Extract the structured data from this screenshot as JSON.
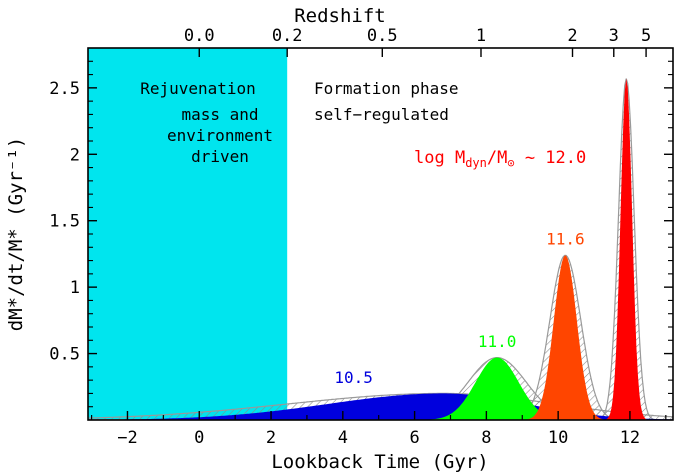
{
  "chart_data": {
    "type": "area",
    "title": "",
    "xlabel": "Lookback Time (Gyr)",
    "ylabel": "dM*/dt/M* (Gyr⁻¹)",
    "top_axis_label": "Redshift",
    "xlim": [
      -3.1,
      13.2
    ],
    "ylim": [
      0,
      2.8
    ],
    "x_ticks": [
      -2,
      0,
      2,
      4,
      6,
      8,
      10,
      12
    ],
    "x_tick_labels": [
      "−2",
      "0",
      "2",
      "4",
      "6",
      "8",
      "10",
      "12"
    ],
    "y_ticks": [
      0.5,
      1,
      1.5,
      2,
      2.5
    ],
    "y_tick_labels": [
      "0.5",
      "1",
      "1.5",
      "2",
      "2.5"
    ],
    "redshift_ticks": [
      {
        "label": "0.0",
        "lookback_gyr": 0.0
      },
      {
        "label": "0.2",
        "lookback_gyr": 2.45
      },
      {
        "label": "0.5",
        "lookback_gyr": 5.1
      },
      {
        "label": "1",
        "lookback_gyr": 7.85
      },
      {
        "label": "2",
        "lookback_gyr": 10.4
      },
      {
        "label": "3",
        "lookback_gyr": 11.55
      },
      {
        "label": "5",
        "lookback_gyr": 12.45
      }
    ],
    "rejuvenation_region": {
      "x_range": [
        -3.1,
        2.45
      ],
      "color": "#00e5ee"
    },
    "phase_labels": {
      "rejuvenation_title": "Rejuvenation",
      "rejuvenation_line1": "mass and",
      "rejuvenation_line2": "environment",
      "rejuvenation_line3": "driven",
      "formation_title": "Formation phase",
      "formation_line1": "self−regulated"
    },
    "mass_bin_prefix": "log M",
    "mass_bin_sub1": "dyn",
    "mass_bin_mid": "/M",
    "mass_bin_sub2": "⊙",
    "mass_bin_suffix": " ~ 12.0",
    "series": [
      {
        "name": "10.5",
        "peak_x": 6.8,
        "peak_y": 0.2,
        "sigma_left": 3.2,
        "sigma_right": 2.3,
        "color": "#0000dd",
        "label_x": 4.3,
        "label_y": 0.28
      },
      {
        "name": "11.0",
        "peak_x": 8.3,
        "peak_y": 0.47,
        "sigma_left": 0.6,
        "sigma_right": 0.6,
        "color": "#00ff00",
        "label_x": 8.3,
        "label_y": 0.55
      },
      {
        "name": "11.6",
        "peak_x": 10.2,
        "peak_y": 1.24,
        "sigma_left": 0.32,
        "sigma_right": 0.32,
        "color": "#ff4500",
        "label_x": 10.2,
        "label_y": 1.32
      },
      {
        "name": "12.0",
        "peak_x": 11.9,
        "peak_y": 2.57,
        "sigma_left": 0.16,
        "sigma_right": 0.16,
        "color": "#ff0000",
        "label_x": null,
        "label_y": null
      }
    ],
    "envelope_color": "#999999",
    "grid": false,
    "legend": "none"
  }
}
